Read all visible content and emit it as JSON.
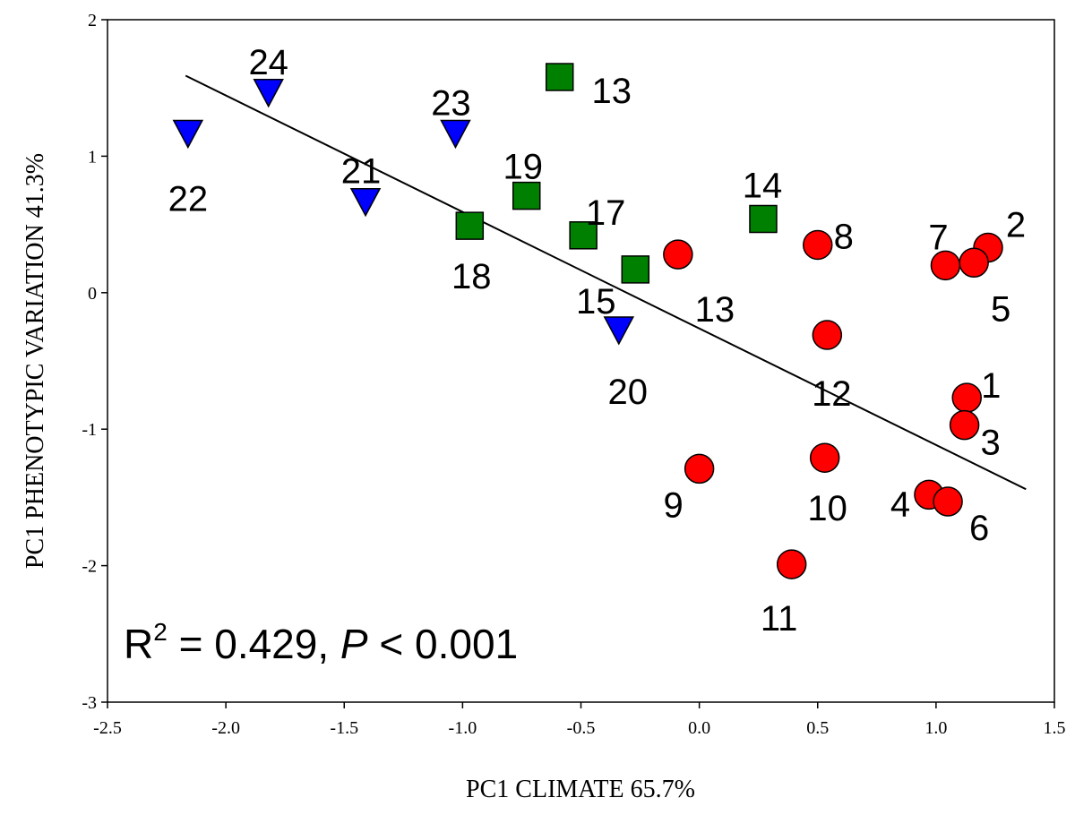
{
  "chart_data": {
    "type": "scatter",
    "xlabel": "PC1 CLIMATE 65.7%",
    "ylabel": "PC1 PHENOTYPIC VARIATION 41.3%",
    "xlim": [
      -2.5,
      1.5
    ],
    "ylim": [
      -3,
      2
    ],
    "xticks": [
      "-2.5",
      "-2.0",
      "-1.5",
      "-1.0",
      "-0.5",
      "0.0",
      "0.5",
      "1.0",
      "1.5"
    ],
    "xtick_values": [
      -2.5,
      -2.0,
      -1.5,
      -1.0,
      -0.5,
      0.0,
      0.5,
      1.0,
      1.5
    ],
    "yticks": [
      "2",
      "1",
      "0",
      "-1",
      "-2",
      "-3"
    ],
    "ytick_values": [
      2,
      1,
      0,
      -1,
      -2,
      -3
    ],
    "annotation": {
      "r_label": "R",
      "r_exp": "2",
      "eq_text": " = 0.429, ",
      "p_label": "P",
      "p_text": " < 0.001"
    },
    "regression_line": {
      "x1": -2.17,
      "y1": 1.59,
      "x2": 1.38,
      "y2": -1.44
    },
    "series": [
      {
        "name": "circles",
        "marker": "circle",
        "color": "#ff0000",
        "points": [
          {
            "label": "1",
            "x": 1.13,
            "y": -0.77
          },
          {
            "label": "2",
            "x": 1.22,
            "y": 0.33
          },
          {
            "label": "3",
            "x": 1.12,
            "y": -0.97
          },
          {
            "label": "4",
            "x": 0.97,
            "y": -1.48
          },
          {
            "label": "5",
            "x": 1.16,
            "y": 0.22
          },
          {
            "label": "6",
            "x": 1.05,
            "y": -1.53
          },
          {
            "label": "7",
            "x": 1.04,
            "y": 0.2
          },
          {
            "label": "8",
            "x": 0.5,
            "y": 0.35
          },
          {
            "label": "9",
            "x": 0.0,
            "y": -1.29
          },
          {
            "label": "10",
            "x": 0.53,
            "y": -1.21
          },
          {
            "label": "11",
            "x": 0.39,
            "y": -1.99
          },
          {
            "label": "12",
            "x": 0.54,
            "y": -0.31
          },
          {
            "label": "13",
            "x": -0.09,
            "y": 0.28
          }
        ]
      },
      {
        "name": "squares",
        "marker": "square",
        "color": "#008000",
        "points": [
          {
            "label": "13",
            "x": -0.59,
            "y": 1.58
          },
          {
            "label": "14",
            "x": 0.27,
            "y": 0.54
          },
          {
            "label": "15",
            "x": -0.27,
            "y": 0.17
          },
          {
            "label": "17",
            "x": -0.49,
            "y": 0.42
          },
          {
            "label": "18",
            "x": -0.97,
            "y": 0.49
          },
          {
            "label": "19",
            "x": -0.73,
            "y": 0.71
          }
        ]
      },
      {
        "name": "triangles",
        "marker": "triangle-down",
        "color": "#0000ff",
        "points": [
          {
            "label": "20",
            "x": -0.34,
            "y": -0.27
          },
          {
            "label": "21",
            "x": -1.41,
            "y": 0.67
          },
          {
            "label": "22",
            "x": -2.16,
            "y": 1.17
          },
          {
            "label": "23",
            "x": -1.03,
            "y": 1.17
          },
          {
            "label": "24",
            "x": -1.82,
            "y": 1.47
          }
        ]
      }
    ]
  }
}
